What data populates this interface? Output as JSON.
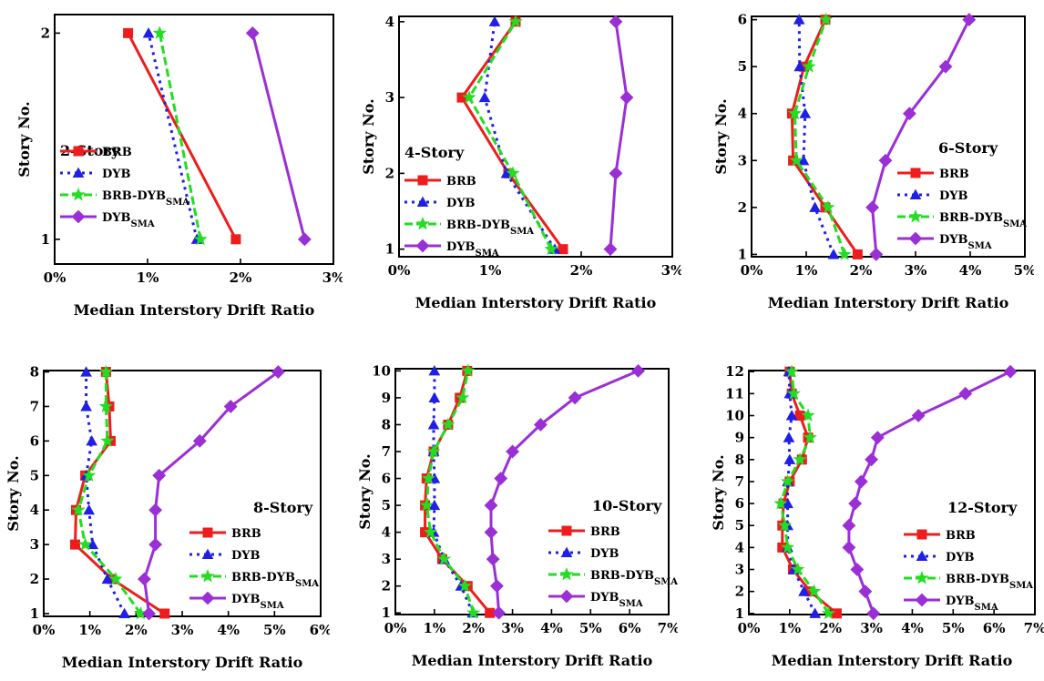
{
  "colors": {
    "BRB": "#ee1c1c",
    "DYB": "#1f1fe6",
    "BRB-DYB_SMA": "#22dd22",
    "DYB_SMA": "#9b2fd6"
  },
  "chart_data": [
    {
      "type": "line",
      "title": "2-Story",
      "xlabel": "Median Interstory Drift Ratio",
      "ylabel": "Story No.",
      "xlim": [
        0,
        3
      ],
      "ylim": [
        0.88,
        2.09
      ],
      "xticks": [
        "0%",
        "1%",
        "2%",
        "3%"
      ],
      "yticks": [
        1,
        2
      ],
      "x_unit": "%",
      "legend": "left-middle",
      "series": [
        {
          "name": "BRB",
          "base": "BRB",
          "sub": "",
          "marker": "square",
          "x": [
            1.95,
            0.79
          ],
          "y": [
            1,
            2
          ]
        },
        {
          "name": "DYB",
          "base": "DYB",
          "sub": "",
          "marker": "triangle",
          "x": [
            1.53,
            1.01
          ],
          "y": [
            1,
            2
          ]
        },
        {
          "name": "BRB-DYB_SMA",
          "base": "BRB-DYB",
          "sub": "SMA",
          "marker": "star",
          "x": [
            1.57,
            1.13
          ],
          "y": [
            1,
            2
          ]
        },
        {
          "name": "DYB_SMA",
          "base": "DYB",
          "sub": "SMA",
          "marker": "diamond",
          "x": [
            2.69,
            2.13
          ],
          "y": [
            1,
            2
          ]
        }
      ]
    },
    {
      "type": "line",
      "title": "4-Story",
      "xlabel": "Median Interstory Drift Ratio",
      "ylabel": "Story No.",
      "xlim": [
        0,
        3
      ],
      "ylim": [
        0.9,
        4.07
      ],
      "xticks": [
        "0%",
        "1%",
        "2%",
        "3%"
      ],
      "yticks": [
        1,
        2,
        3,
        4
      ],
      "x_unit": "%",
      "legend": "left-middle",
      "series": [
        {
          "name": "BRB",
          "base": "BRB",
          "sub": "",
          "marker": "square",
          "x": [
            1.8,
            1.2,
            0.69,
            1.28
          ],
          "y": [
            1,
            2,
            3,
            4
          ]
        },
        {
          "name": "DYB",
          "base": "DYB",
          "sub": "",
          "marker": "triangle",
          "x": [
            1.71,
            1.18,
            0.94,
            1.05
          ],
          "y": [
            1,
            2,
            3,
            4
          ]
        },
        {
          "name": "BRB-DYB_SMA",
          "base": "BRB-DYB",
          "sub": "SMA",
          "marker": "star",
          "x": [
            1.67,
            1.25,
            0.77,
            1.28
          ],
          "y": [
            1,
            2,
            3,
            4
          ]
        },
        {
          "name": "DYB_SMA",
          "base": "DYB",
          "sub": "SMA",
          "marker": "diamond",
          "x": [
            2.32,
            2.38,
            2.5,
            2.38
          ],
          "y": [
            1,
            2,
            3,
            4
          ]
        }
      ]
    },
    {
      "type": "line",
      "title": "6-Story",
      "xlabel": "Median Interstory Drift Ratio",
      "ylabel": "Story No.",
      "xlim": [
        0,
        5
      ],
      "ylim": [
        0.95,
        6.07
      ],
      "xticks": [
        "0%",
        "1%",
        "2%",
        "3%",
        "4%",
        "5%"
      ],
      "yticks": [
        1,
        2,
        3,
        4,
        5,
        6
      ],
      "x_unit": "%",
      "legend": "right-middle",
      "series": [
        {
          "name": "BRB",
          "base": "BRB",
          "sub": "",
          "marker": "square",
          "x": [
            1.94,
            1.35,
            0.76,
            0.74,
            0.96,
            1.35
          ],
          "y": [
            1,
            2,
            3,
            4,
            5,
            6
          ]
        },
        {
          "name": "DYB",
          "base": "DYB",
          "sub": "",
          "marker": "triangle",
          "x": [
            1.5,
            1.16,
            0.95,
            0.98,
            0.88,
            0.87
          ],
          "y": [
            1,
            2,
            3,
            4,
            5,
            6
          ]
        },
        {
          "name": "BRB-DYB_SMA",
          "base": "BRB-DYB",
          "sub": "SMA",
          "marker": "star",
          "x": [
            1.7,
            1.4,
            0.82,
            0.79,
            1.05,
            1.36
          ],
          "y": [
            1,
            2,
            3,
            4,
            5,
            6
          ]
        },
        {
          "name": "DYB_SMA",
          "base": "DYB",
          "sub": "SMA",
          "marker": "diamond",
          "x": [
            2.28,
            2.21,
            2.45,
            2.89,
            3.55,
            3.98
          ],
          "y": [
            1,
            2,
            3,
            4,
            5,
            6
          ]
        }
      ]
    },
    {
      "type": "line",
      "title": "8-Story",
      "xlabel": "Median Interstory Drift Ratio",
      "ylabel": "Story No.",
      "xlim": [
        0,
        6
      ],
      "ylim": [
        0.92,
        8.04
      ],
      "xticks": [
        "0%",
        "1%",
        "2%",
        "3%",
        "4%",
        "5%",
        "6%"
      ],
      "yticks": [
        1,
        2,
        3,
        4,
        5,
        6,
        7,
        8
      ],
      "x_unit": "%",
      "legend": "right-bottom",
      "series": [
        {
          "name": "BRB",
          "base": "BRB",
          "sub": "",
          "marker": "square",
          "x": [
            2.62,
            1.48,
            0.68,
            0.7,
            0.9,
            1.45,
            1.42,
            1.35
          ],
          "y": [
            1,
            2,
            3,
            4,
            5,
            6,
            7,
            8
          ]
        },
        {
          "name": "DYB",
          "base": "DYB",
          "sub": "",
          "marker": "triangle",
          "x": [
            1.75,
            1.38,
            1.06,
            0.98,
            0.92,
            1.04,
            0.92,
            0.92
          ],
          "y": [
            1,
            2,
            3,
            4,
            5,
            6,
            7,
            8
          ]
        },
        {
          "name": "BRB-DYB_SMA",
          "base": "BRB-DYB",
          "sub": "SMA",
          "marker": "star",
          "x": [
            2.1,
            1.56,
            0.9,
            0.75,
            0.98,
            1.38,
            1.35,
            1.35
          ],
          "y": [
            1,
            2,
            3,
            4,
            5,
            6,
            7,
            8
          ]
        },
        {
          "name": "DYB_SMA",
          "base": "DYB",
          "sub": "SMA",
          "marker": "diamond",
          "x": [
            2.28,
            2.18,
            2.42,
            2.42,
            2.5,
            3.38,
            4.05,
            5.08
          ],
          "y": [
            1,
            2,
            3,
            4,
            5,
            6,
            7,
            8
          ]
        }
      ]
    },
    {
      "type": "line",
      "title": "10-Story",
      "xlabel": "Median Interstory Drift Ratio",
      "ylabel": "Story No.",
      "xlim": [
        0,
        7
      ],
      "ylim": [
        0.94,
        10.08
      ],
      "xticks": [
        "0%",
        "1%",
        "2%",
        "3%",
        "4%",
        "5%",
        "6%",
        "7%"
      ],
      "yticks": [
        1,
        2,
        3,
        4,
        5,
        6,
        7,
        8,
        9,
        10
      ],
      "x_unit": "%",
      "legend": "right-bottom",
      "series": [
        {
          "name": "BRB",
          "base": "BRB",
          "sub": "",
          "marker": "square",
          "x": [
            2.42,
            1.85,
            1.2,
            0.76,
            0.76,
            0.8,
            0.98,
            1.35,
            1.65,
            1.84
          ],
          "y": [
            1,
            2,
            3,
            4,
            5,
            6,
            7,
            8,
            9,
            10
          ]
        },
        {
          "name": "DYB",
          "base": "DYB",
          "sub": "",
          "marker": "triangle",
          "x": [
            1.98,
            1.68,
            1.25,
            0.98,
            1.0,
            1.0,
            0.98,
            0.98,
            1.0,
            1.0
          ],
          "y": [
            1,
            2,
            3,
            4,
            5,
            6,
            7,
            8,
            9,
            10
          ]
        },
        {
          "name": "BRB-DYB_SMA",
          "base": "BRB-DYB",
          "sub": "SMA",
          "marker": "star",
          "x": [
            2.0,
            1.78,
            1.25,
            0.9,
            0.8,
            0.85,
            0.98,
            1.35,
            1.72,
            1.86
          ],
          "y": [
            1,
            2,
            3,
            4,
            5,
            6,
            7,
            8,
            9,
            10
          ]
        },
        {
          "name": "DYB_SMA",
          "base": "DYB",
          "sub": "SMA",
          "marker": "diamond",
          "x": [
            2.65,
            2.6,
            2.5,
            2.45,
            2.45,
            2.7,
            3.0,
            3.72,
            4.6,
            6.22
          ],
          "y": [
            1,
            2,
            3,
            4,
            5,
            6,
            7,
            8,
            9,
            10
          ]
        }
      ]
    },
    {
      "type": "line",
      "title": "12-Story",
      "xlabel": "Median Interstory Drift Ratio",
      "ylabel": "Story No.",
      "xlim": [
        0,
        7
      ],
      "ylim": [
        0.95,
        12.05
      ],
      "xticks": [
        "0%",
        "1%",
        "2%",
        "3%",
        "4%",
        "5%",
        "6%",
        "7%"
      ],
      "yticks": [
        1,
        2,
        3,
        4,
        5,
        6,
        7,
        8,
        9,
        10,
        11,
        12
      ],
      "x_unit": "%",
      "legend": "right-bottom",
      "series": [
        {
          "name": "BRB",
          "base": "BRB",
          "sub": "",
          "marker": "square",
          "x": [
            2.15,
            1.5,
            1.08,
            0.82,
            0.82,
            0.85,
            1.0,
            1.3,
            1.45,
            1.25,
            1.05,
            1.0
          ],
          "y": [
            1,
            2,
            3,
            4,
            5,
            6,
            7,
            8,
            9,
            10,
            11,
            12
          ]
        },
        {
          "name": "DYB",
          "base": "DYB",
          "sub": "",
          "marker": "triangle",
          "x": [
            1.62,
            1.35,
            1.1,
            0.95,
            0.95,
            0.95,
            0.95,
            1.0,
            0.98,
            1.05,
            1.0,
            0.98
          ],
          "y": [
            1,
            2,
            3,
            4,
            5,
            6,
            7,
            8,
            9,
            10,
            11,
            12
          ]
        },
        {
          "name": "BRB-DYB_SMA",
          "base": "BRB-DYB",
          "sub": "SMA",
          "marker": "star",
          "x": [
            1.95,
            1.6,
            1.2,
            0.95,
            0.88,
            0.78,
            0.95,
            1.25,
            1.5,
            1.45,
            1.1,
            1.05
          ],
          "y": [
            1,
            2,
            3,
            4,
            5,
            6,
            7,
            8,
            9,
            10,
            11,
            12
          ]
        },
        {
          "name": "DYB_SMA",
          "base": "DYB",
          "sub": "SMA",
          "marker": "diamond",
          "x": [
            3.05,
            2.85,
            2.65,
            2.45,
            2.45,
            2.6,
            2.75,
            3.0,
            3.15,
            4.15,
            5.3,
            6.4
          ],
          "y": [
            1,
            2,
            3,
            4,
            5,
            6,
            7,
            8,
            9,
            10,
            11,
            12
          ]
        }
      ]
    }
  ]
}
